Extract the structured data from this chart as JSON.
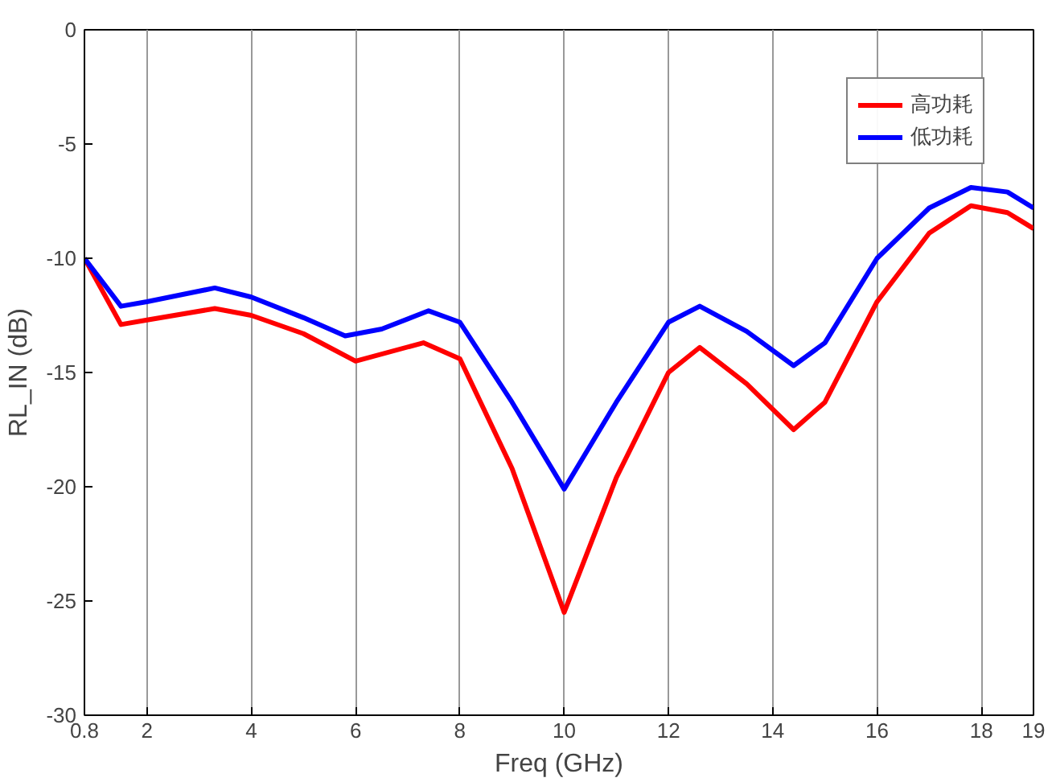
{
  "chart_data": {
    "type": "line",
    "xlabel": "Freq (GHz)",
    "ylabel": "RL_IN (dB)",
    "xlim": [
      0.8,
      19
    ],
    "xticks": [
      0.8,
      2,
      4,
      6,
      8,
      10,
      12,
      14,
      16,
      18,
      19
    ],
    "ylim": [
      -30,
      0
    ],
    "yticks": [
      -30,
      -25,
      -20,
      -15,
      -10,
      -5,
      0
    ],
    "grid": "x",
    "legend": "top right",
    "line_style": "solid",
    "series": [
      {
        "name": "高功耗",
        "color": "#ff0000",
        "x": [
          0.8,
          1.5,
          2,
          3.3,
          4,
          5,
          6,
          7.3,
          8,
          9,
          10,
          11,
          12,
          12.6,
          13.5,
          14.4,
          15,
          16,
          17,
          17.8,
          18.5,
          19
        ],
        "values": [
          -10.0,
          -12.9,
          -12.7,
          -12.2,
          -12.5,
          -13.3,
          -14.5,
          -13.7,
          -14.4,
          -19.2,
          -25.5,
          -19.6,
          -15.0,
          -13.9,
          -15.5,
          -17.5,
          -16.3,
          -11.9,
          -8.9,
          -7.7,
          -8.0,
          -8.7
        ]
      },
      {
        "name": "低功耗",
        "color": "#0000ff",
        "x": [
          0.8,
          1.5,
          2,
          3.3,
          4,
          5,
          5.8,
          6.5,
          7.4,
          8,
          9,
          10,
          11,
          12,
          12.6,
          13.5,
          14.4,
          15,
          16,
          17,
          17.8,
          18.5,
          19
        ],
        "values": [
          -10.0,
          -12.1,
          -11.9,
          -11.3,
          -11.7,
          -12.6,
          -13.4,
          -13.1,
          -12.3,
          -12.8,
          -16.3,
          -20.1,
          -16.3,
          -12.8,
          -12.1,
          -13.2,
          -14.7,
          -13.7,
          -10.0,
          -7.8,
          -6.9,
          -7.1,
          -7.8
        ]
      }
    ]
  }
}
